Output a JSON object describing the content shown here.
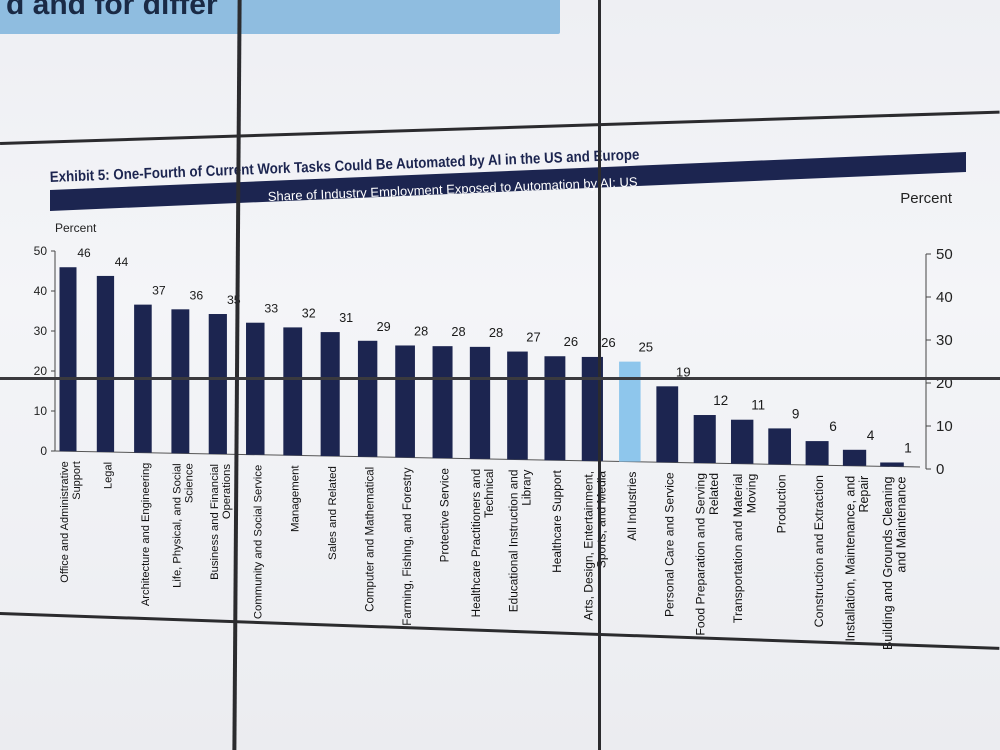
{
  "banner_text": "d and for differ",
  "chart_data": {
    "type": "bar",
    "title": "Exhibit 5: One-Fourth of Current Work Tasks Could Be Automated by AI in the US and Europe",
    "subtitle": "Share of Industry Employment Exposed to Automation by AI: US",
    "ylabel_left": "Percent",
    "ylabel_right": "Percent",
    "ylim": [
      0,
      50
    ],
    "yticks_left": [
      "0",
      "10",
      "20",
      "30",
      "40",
      "50"
    ],
    "yticks_right": [
      "0",
      "10",
      "20",
      "30",
      "40",
      "50"
    ],
    "grid": false,
    "highlight_category": "All Industries",
    "colors": {
      "bar": "#1c2550",
      "highlight": "#8ec6ec",
      "title_bar": "#1c2550"
    },
    "categories": [
      [
        "Office and Administrative",
        "Support"
      ],
      [
        "Legal"
      ],
      [
        "Architecture and Engineering"
      ],
      [
        "Life, Physical, and Social",
        "Science"
      ],
      [
        "Business and Financial",
        "Operations"
      ],
      [
        "Community and Social Service"
      ],
      [
        "Management"
      ],
      [
        "Sales and Related"
      ],
      [
        "Computer and Mathematical"
      ],
      [
        "Farming, Fishing, and Forestry"
      ],
      [
        "Protective Service"
      ],
      [
        "Healthcare Practitioners and",
        "Technical"
      ],
      [
        "Educational Instruction and",
        "Library"
      ],
      [
        "Healthcare Support"
      ],
      [
        "Arts, Design, Entertainment,",
        "Sports, and Media"
      ],
      [
        "All Industries"
      ],
      [
        "Personal Care and Service"
      ],
      [
        "Food Preparation and Serving",
        "Related"
      ],
      [
        "Transportation and Material",
        "Moving"
      ],
      [
        "Production"
      ],
      [
        "Construction and Extraction"
      ],
      [
        "Installation, Maintenance, and",
        "Repair"
      ],
      [
        "Building and Grounds Cleaning",
        "and Maintenance"
      ]
    ],
    "values": [
      46,
      44,
      37,
      36,
      35,
      33,
      32,
      31,
      29,
      28,
      28,
      28,
      27,
      26,
      26,
      25,
      19,
      12,
      11,
      9,
      6,
      4,
      1
    ]
  }
}
